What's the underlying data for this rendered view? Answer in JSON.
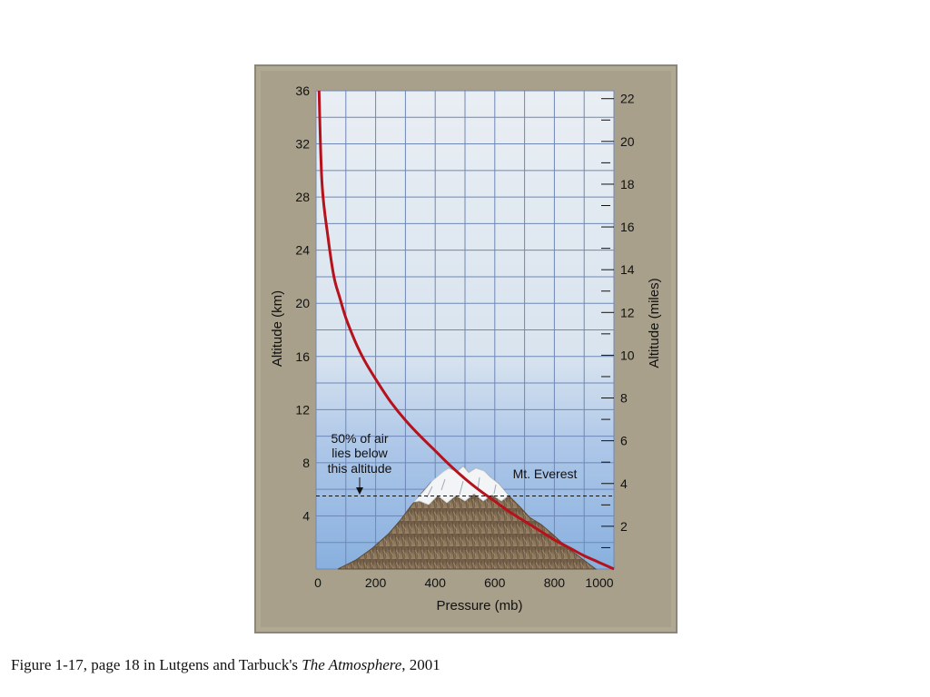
{
  "chart_data": {
    "type": "line",
    "title": "",
    "xlabel": "Pressure (mb)",
    "ylabel": "Altitude (km)",
    "y2label": "Altitude (miles)",
    "xlim": [
      0,
      1000
    ],
    "ylim": [
      0,
      36
    ],
    "y2lim": [
      0,
      22.37
    ],
    "x_ticks": [
      "0",
      "200",
      "400",
      "600",
      "800",
      "1000"
    ],
    "y_ticks": [
      "4",
      "8",
      "12",
      "16",
      "20",
      "24",
      "28",
      "32",
      "36"
    ],
    "y2_ticks": [
      "2",
      "4",
      "6",
      "8",
      "10",
      "12",
      "14",
      "16",
      "18",
      "20",
      "22"
    ],
    "grid": true,
    "series": [
      {
        "name": "",
        "color": "#b5121b",
        "x": [
          10,
          20,
          40,
          60,
          80,
          100,
          130,
          160,
          200,
          250,
          300,
          350,
          400,
          450,
          500,
          550,
          600,
          650,
          700,
          750,
          800,
          850,
          900,
          950,
          1000
        ],
        "y": [
          36,
          29,
          25,
          22,
          20.4,
          18.9,
          17.2,
          15.8,
          14.3,
          12.6,
          11.2,
          10,
          8.9,
          7.8,
          6.8,
          5.9,
          5.1,
          4.3,
          3.6,
          2.9,
          2.2,
          1.6,
          1.0,
          0.5,
          0
        ]
      }
    ],
    "reference_line": {
      "y": 5.5,
      "style": "dashed"
    },
    "annotations": [
      {
        "id": "half-air",
        "lines": [
          "50% of air",
          "lies below",
          "this altitude"
        ]
      },
      {
        "id": "everest",
        "text": "Mt. Everest"
      }
    ]
  },
  "colors": {
    "frame": "#a39b86",
    "plot_top": "#e8eef4",
    "plot_bottom": "#8fb4e0",
    "grid": "#6f87b7",
    "mountain": "#8a7154",
    "snow": "#f4f6f8"
  },
  "caption": {
    "prefix": "Figure 1-17, page 18 in Lutgens and Tarbuck's ",
    "book": "The Atmosphere",
    "suffix": ", 2001"
  }
}
